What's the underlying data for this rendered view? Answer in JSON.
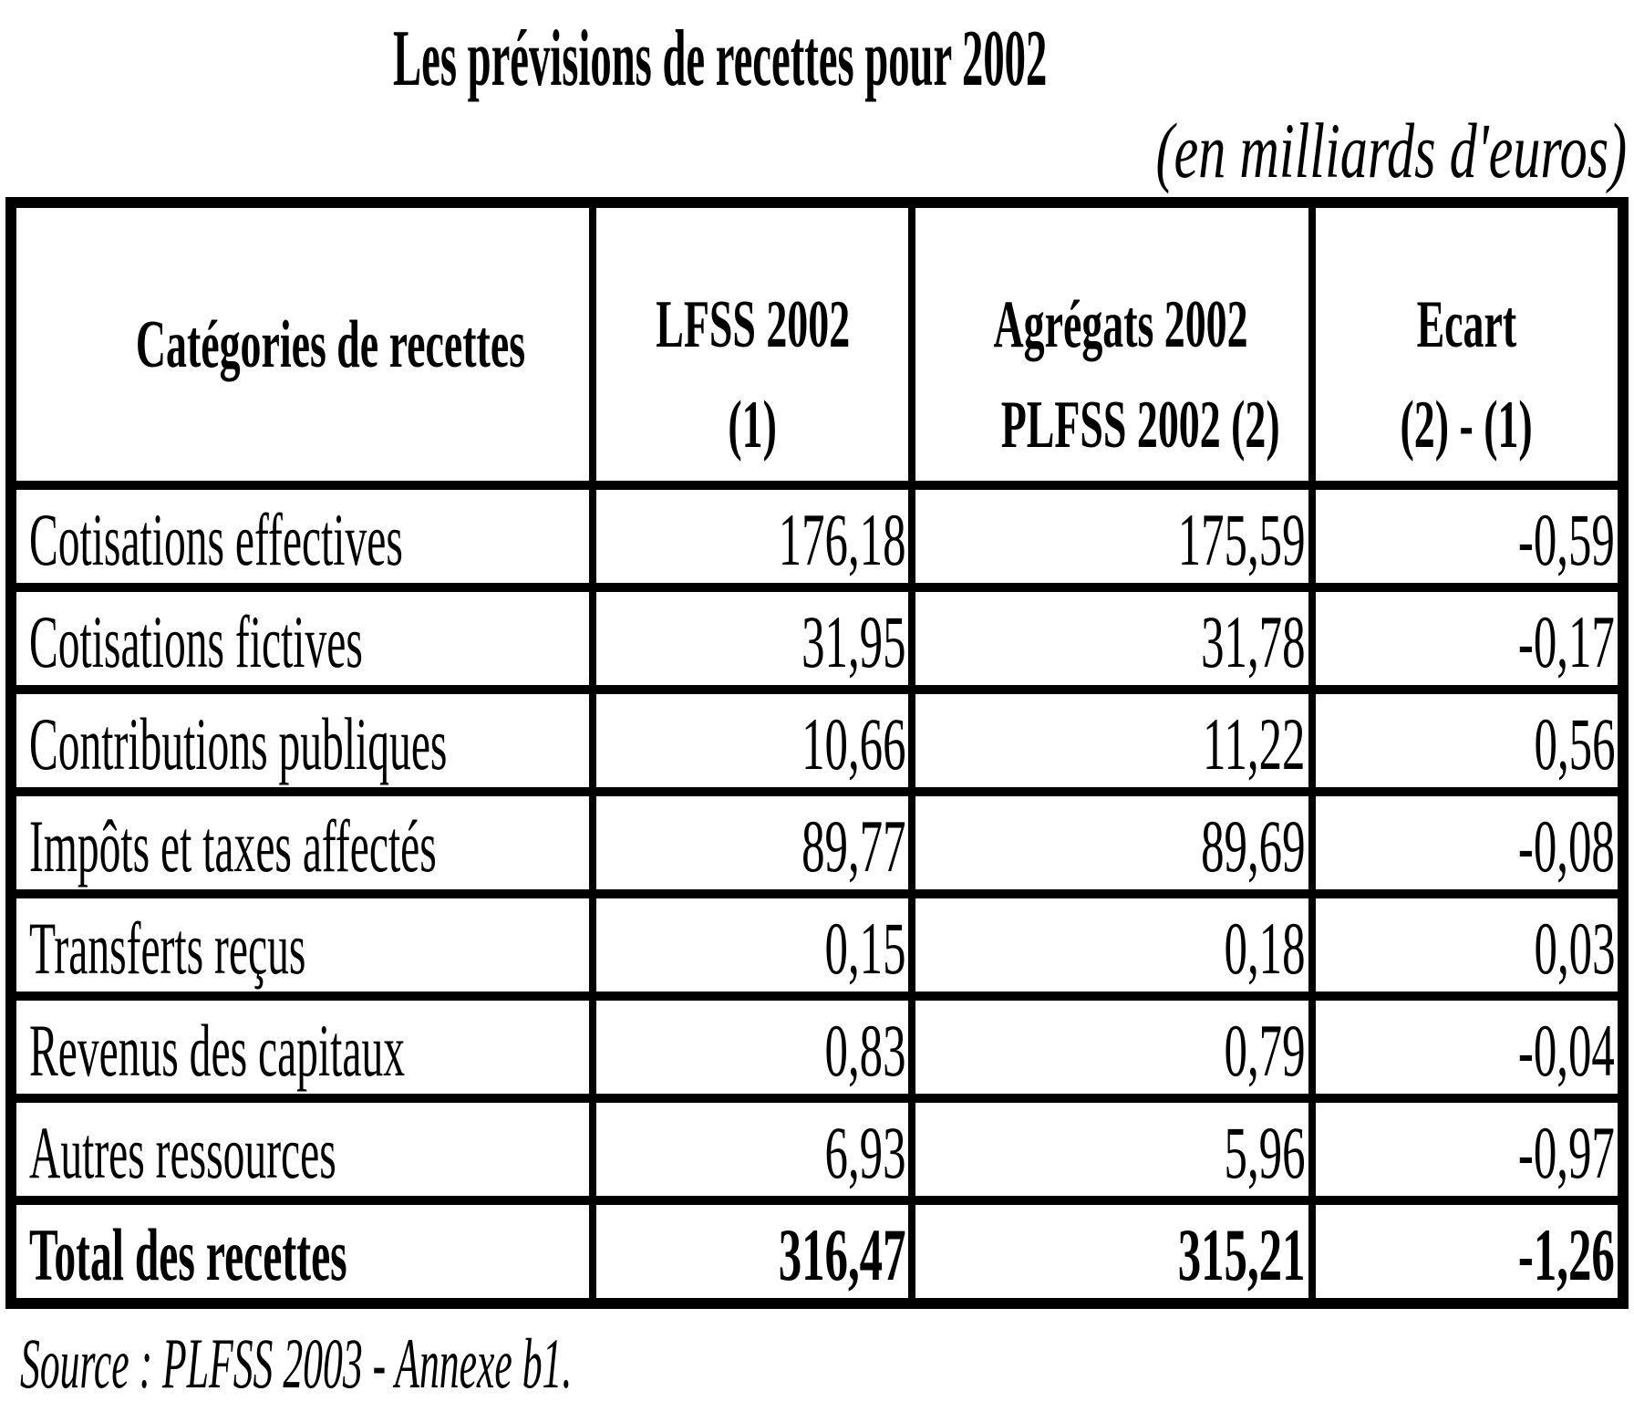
{
  "title": "Les prévisions de recettes pour 2002",
  "unit_note": "(en milliards d'euros)",
  "colors": {
    "text": "#000000",
    "background": "#ffffff",
    "border": "#000000"
  },
  "table": {
    "col_headers": [
      {
        "line1": "Catégories de recettes",
        "line2": ""
      },
      {
        "line1": "LFSS 2002",
        "line2": "(1)"
      },
      {
        "line1": "Agrégats 2002",
        "line2": "PLFSS 2002 (2)"
      },
      {
        "line1": "Ecart",
        "line2": "(2) - (1)"
      }
    ],
    "rows": [
      {
        "label": "Cotisations effectives",
        "lfss": "176,18",
        "agregats": "175,59",
        "ecart": "-0,59"
      },
      {
        "label": "Cotisations fictives",
        "lfss": "31,95",
        "agregats": "31,78",
        "ecart": "-0,17"
      },
      {
        "label": "Contributions publiques",
        "lfss": "10,66",
        "agregats": "11,22",
        "ecart": "0,56"
      },
      {
        "label": "Impôts et taxes affectés",
        "lfss": "89,77",
        "agregats": "89,69",
        "ecart": "-0,08"
      },
      {
        "label": "Transferts reçus",
        "lfss": "0,15",
        "agregats": "0,18",
        "ecart": "0,03"
      },
      {
        "label": "Revenus des capitaux",
        "lfss": "0,83",
        "agregats": "0,79",
        "ecart": "-0,04"
      },
      {
        "label": "Autres ressources",
        "lfss": "6,93",
        "agregats": "5,96",
        "ecart": "-0,97"
      }
    ],
    "total_row": {
      "label": "Total des recettes",
      "lfss": "316,47",
      "agregats": "315,21",
      "ecart": "-1,26"
    }
  },
  "source": "Source : PLFSS 2003 - Annexe b1."
}
